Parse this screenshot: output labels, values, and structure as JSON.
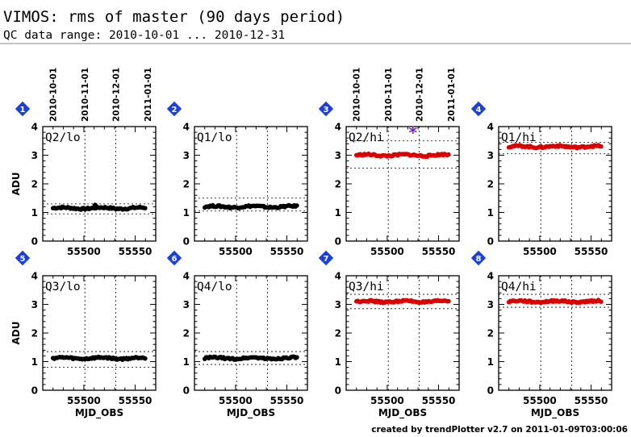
{
  "header": {
    "title": "VIMOS: rms of master (90 days period)",
    "subtitle": "QC data range: 2010-10-01 ... 2010-12-31"
  },
  "footer": {
    "credit": "created by trendPlotter v2.7 on 2011-01-09T03:00:06"
  },
  "colors": {
    "lo_series": "#000000",
    "hi_series": "#dd0000",
    "outlier": "#7a1fd0",
    "badge": "#1a3fdc",
    "text": "#000000"
  },
  "chart_data": [
    {
      "type": "scatter",
      "panel_number": "1",
      "label": "Q2/lo",
      "series_color": "#000000",
      "xlabel": "",
      "ylabel": "ADU",
      "xlim": [
        55460,
        55570
      ],
      "ylim": [
        0,
        4
      ],
      "xticks": [
        "55500",
        "55550"
      ],
      "yticks": [
        "0",
        "1",
        "2",
        "3",
        "4"
      ],
      "date_ticks": [
        "2010-10-01",
        "2010-11-01",
        "2010-12-01",
        "2011-01-01"
      ],
      "level": 1.15,
      "ref_lines": [
        0.95,
        1.3
      ],
      "x_range": [
        55470,
        55561
      ],
      "outliers": [
        {
          "x": 55511,
          "y": 1.25,
          "color": "#000000"
        }
      ]
    },
    {
      "type": "scatter",
      "panel_number": "2",
      "label": "Q1/lo",
      "series_color": "#000000",
      "xlabel": "",
      "ylabel": "",
      "xlim": [
        55460,
        55570
      ],
      "ylim": [
        0,
        4
      ],
      "xticks": [
        "55500",
        "55550"
      ],
      "yticks": [
        "0",
        "1",
        "2",
        "3",
        "4"
      ],
      "date_ticks": [],
      "level": 1.2,
      "ref_lines": [
        1.05,
        1.5
      ],
      "x_range": [
        55470,
        55561
      ],
      "outliers": []
    },
    {
      "type": "scatter",
      "panel_number": "3",
      "label": "Q2/hi",
      "series_color": "#dd0000",
      "xlabel": "",
      "ylabel": "",
      "xlim": [
        55460,
        55570
      ],
      "ylim": [
        0,
        4
      ],
      "xticks": [
        "55500",
        "55550"
      ],
      "yticks": [
        "0",
        "1",
        "2",
        "3",
        "4"
      ],
      "date_ticks": [
        "2010-10-01",
        "2010-11-01",
        "2010-12-01",
        "2011-01-01"
      ],
      "level": 3.0,
      "ref_lines": [
        2.55,
        3.5
      ],
      "x_range": [
        55470,
        55561
      ],
      "outliers": [
        {
          "x": 55525,
          "y": 3.85,
          "color": "#7a1fd0"
        }
      ]
    },
    {
      "type": "scatter",
      "panel_number": "4",
      "label": "Q1/hi",
      "series_color": "#dd0000",
      "xlabel": "",
      "ylabel": "",
      "xlim": [
        55460,
        55570
      ],
      "ylim": [
        0,
        4
      ],
      "xticks": [
        "55500",
        "55550"
      ],
      "yticks": [
        "0",
        "1",
        "2",
        "3",
        "4"
      ],
      "date_ticks": [],
      "level": 3.3,
      "ref_lines": [
        3.05,
        3.45
      ],
      "x_range": [
        55470,
        55561
      ],
      "outliers": []
    },
    {
      "type": "scatter",
      "panel_number": "5",
      "label": "Q3/lo",
      "series_color": "#000000",
      "xlabel": "MJD_OBS",
      "ylabel": "ADU",
      "xlim": [
        55460,
        55570
      ],
      "ylim": [
        0,
        4
      ],
      "xticks": [
        "55500",
        "55550"
      ],
      "yticks": [
        "0",
        "1",
        "2",
        "3",
        "4"
      ],
      "date_ticks": [],
      "level": 1.12,
      "ref_lines": [
        0.8,
        1.35
      ],
      "x_range": [
        55470,
        55561
      ],
      "outliers": []
    },
    {
      "type": "scatter",
      "panel_number": "6",
      "label": "Q4/lo",
      "series_color": "#000000",
      "xlabel": "MJD_OBS",
      "ylabel": "",
      "xlim": [
        55460,
        55570
      ],
      "ylim": [
        0,
        4
      ],
      "xticks": [
        "55500",
        "55550"
      ],
      "yticks": [
        "0",
        "1",
        "2",
        "3",
        "4"
      ],
      "date_ticks": [],
      "level": 1.12,
      "ref_lines": [
        0.9,
        1.35
      ],
      "x_range": [
        55470,
        55561
      ],
      "outliers": []
    },
    {
      "type": "scatter",
      "panel_number": "7",
      "label": "Q3/hi",
      "series_color": "#dd0000",
      "xlabel": "MJD_OBS",
      "ylabel": "",
      "xlim": [
        55460,
        55570
      ],
      "ylim": [
        0,
        4
      ],
      "xticks": [
        "55500",
        "55550"
      ],
      "yticks": [
        "0",
        "1",
        "2",
        "3",
        "4"
      ],
      "date_ticks": [],
      "level": 3.1,
      "ref_lines": [
        2.85,
        3.35
      ],
      "x_range": [
        55470,
        55561
      ],
      "outliers": []
    },
    {
      "type": "scatter",
      "panel_number": "8",
      "label": "Q4/hi",
      "series_color": "#dd0000",
      "xlabel": "MJD_OBS",
      "ylabel": "",
      "xlim": [
        55460,
        55570
      ],
      "ylim": [
        0,
        4
      ],
      "xticks": [
        "55500",
        "55550"
      ],
      "yticks": [
        "0",
        "1",
        "2",
        "3",
        "4"
      ],
      "date_ticks": [],
      "level": 3.1,
      "ref_lines": [
        2.9,
        3.35
      ],
      "x_range": [
        55470,
        55561
      ],
      "outliers": []
    }
  ]
}
